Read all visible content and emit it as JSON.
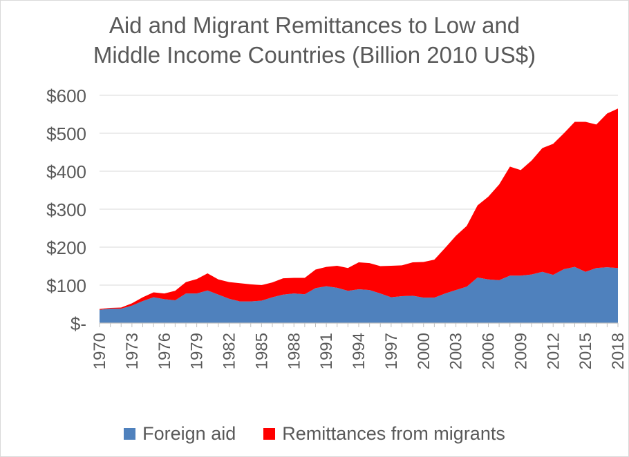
{
  "chart_data": {
    "type": "area",
    "stacked": true,
    "title": "Aid and Migrant Remittances to Low and\nMiddle Income Countries (Billion 2010 US$)",
    "xlabel": "",
    "ylabel": "",
    "ylim": [
      0,
      600
    ],
    "yticks": [
      0,
      100,
      200,
      300,
      400,
      500,
      600
    ],
    "ytick_labels": [
      "$-",
      "$100",
      "$200",
      "$300",
      "$400",
      "$500",
      "$600"
    ],
    "x": [
      1970,
      1971,
      1972,
      1973,
      1974,
      1975,
      1976,
      1977,
      1978,
      1979,
      1980,
      1981,
      1982,
      1983,
      1984,
      1985,
      1986,
      1987,
      1988,
      1989,
      1990,
      1991,
      1992,
      1993,
      1994,
      1995,
      1996,
      1997,
      1998,
      1999,
      2000,
      2001,
      2002,
      2003,
      2004,
      2005,
      2006,
      2007,
      2008,
      2009,
      2010,
      2011,
      2012,
      2013,
      2014,
      2015,
      2016,
      2017,
      2018
    ],
    "xtick_labels": [
      "1970",
      "1973",
      "1976",
      "1979",
      "1982",
      "1985",
      "1988",
      "1991",
      "1994",
      "1997",
      "2000",
      "2003",
      "2006",
      "2009",
      "2012",
      "2015",
      "2018"
    ],
    "grid": true,
    "legend_position": "bottom",
    "series": [
      {
        "name": "Foreign aid",
        "color": "#4f81bd",
        "values": [
          35,
          38,
          38,
          46,
          58,
          68,
          63,
          60,
          78,
          78,
          86,
          75,
          64,
          57,
          57,
          59,
          68,
          75,
          78,
          76,
          92,
          97,
          93,
          85,
          89,
          87,
          78,
          68,
          71,
          72,
          67,
          67,
          78,
          87,
          96,
          120,
          115,
          113,
          125,
          125,
          128,
          135,
          127,
          142,
          148,
          135,
          145,
          147,
          145
        ]
      },
      {
        "name": "Remittances from migrants",
        "color": "#ff0000",
        "values": [
          2,
          2,
          3,
          6,
          10,
          13,
          15,
          25,
          30,
          38,
          45,
          40,
          44,
          48,
          45,
          41,
          39,
          43,
          41,
          43,
          49,
          51,
          58,
          60,
          71,
          71,
          72,
          83,
          81,
          88,
          94,
          100,
          120,
          143,
          160,
          190,
          218,
          252,
          287,
          278,
          300,
          326,
          345,
          358,
          382,
          395,
          378,
          405,
          420
        ]
      }
    ]
  }
}
